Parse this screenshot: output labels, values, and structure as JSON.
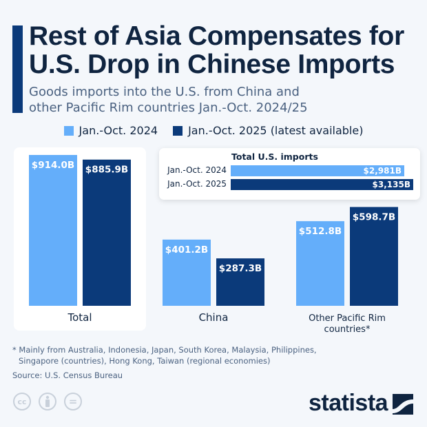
{
  "title": "Rest of Asia Compensates for U.S. Drop in Chinese Imports",
  "title_lines": [
    "Rest of Asia Compensates for",
    "U.S. Drop in Chinese Imports"
  ],
  "subtitle_lines": [
    "Goods imports into the U.S. from China and",
    "other Pacific Rim countries Jan.-Oct. 2024/25"
  ],
  "colors": {
    "series_2024": "#64aefa",
    "series_2025": "#0b3a7a",
    "title": "#0f2440"
  },
  "chart_data": {
    "type": "bar",
    "categories": [
      "Total",
      "China",
      "Other Pacific Rim countries*"
    ],
    "category_lines": [
      [
        "Total"
      ],
      [
        "China"
      ],
      [
        "Other Pacific Rim",
        "countries*"
      ]
    ],
    "series": [
      {
        "name": "Jan.-Oct. 2024",
        "values": [
          914.0,
          401.2,
          512.8
        ],
        "labels": [
          "$914.0B",
          "$401.2B",
          "$512.8B"
        ]
      },
      {
        "name": "Jan.-Oct. 2025 (latest available)",
        "values": [
          885.9,
          287.3,
          598.7
        ],
        "labels": [
          "$885.9B",
          "$287.3B",
          "$598.7B"
        ]
      }
    ],
    "unit": "billion U.S. dollars",
    "ylim": [
      0,
      914
    ],
    "grid": false,
    "legend": "top-center"
  },
  "inset": {
    "title": "Total U.S. imports",
    "rows": [
      {
        "label": "Jan.-Oct. 2024",
        "value": 2981,
        "text": "$2,981B"
      },
      {
        "label": "Jan.-Oct. 2025",
        "value": 3135,
        "text": "$3,135B"
      }
    ]
  },
  "footnote_lines": [
    "* Mainly from Australia, Indonesia, Japan, South Korea, Malaysia, Philippines,",
    "Singapore (countries), Hong Kong, Taiwan (regional economies)"
  ],
  "source": "Source: U.S. Census Bureau",
  "license_icons": [
    "cc-icon",
    "attribution-icon",
    "no-derivatives-icon"
  ],
  "license_text": {
    "cc": "cc",
    "nd": "="
  },
  "logo": "statista"
}
